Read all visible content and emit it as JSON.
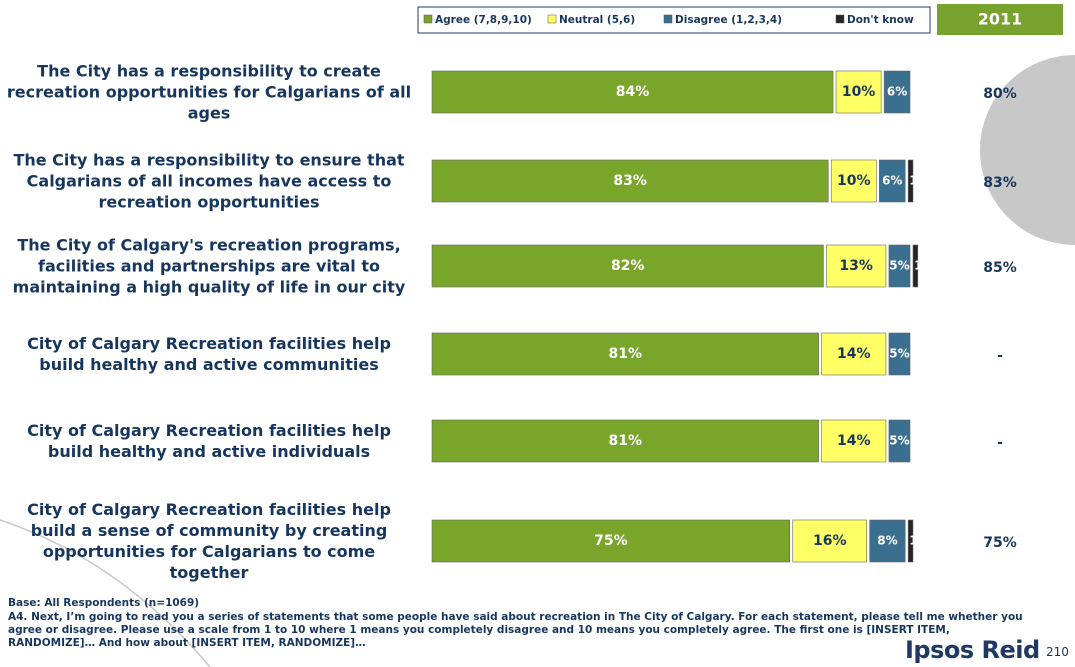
{
  "chart_data": {
    "type": "stacked-bar-horizontal",
    "categories": [
      "The City has a responsibility to create recreation opportunities for Calgarians of all ages",
      "The City has a responsibility to ensure that Calgarians of all incomes have access to recreation opportunities",
      "The City of Calgary's recreation programs, facilities and partnerships are vital to maintaining a high quality of life in our city",
      "City of Calgary Recreation facilities help build healthy and active communities",
      "City of Calgary Recreation facilities help build healthy and active individuals",
      "City of Calgary Recreation facilities help build a sense of community by creating opportunities for Calgarians to come together"
    ],
    "xlim": [
      0,
      100
    ],
    "series": [
      {
        "name": "Agree (7,8,9,10)",
        "color": "#7aa52b",
        "values": [
          84,
          83,
          82,
          81,
          81,
          75
        ],
        "value_labels": [
          "84%",
          "83%",
          "82%",
          "81%",
          "81%",
          "75%"
        ]
      },
      {
        "name": "Neutral (5,6)",
        "color": "#ffff66",
        "values": [
          10,
          10,
          13,
          14,
          14,
          16
        ],
        "value_labels": [
          "10%",
          "10%",
          "13%",
          "14%",
          "14%",
          "16%"
        ]
      },
      {
        "name": "Disagree (1,2,3,4)",
        "color": "#3b6f8f",
        "values": [
          6,
          6,
          5,
          5,
          5,
          8
        ],
        "value_labels": [
          "6%",
          "6%",
          "5%",
          "5%",
          "5%",
          "8%"
        ]
      },
      {
        "name": "Don't know",
        "color": "#262626",
        "values": [
          0,
          1,
          1,
          0,
          0,
          1
        ],
        "value_labels": [
          null,
          "1",
          "1",
          null,
          null,
          "1"
        ]
      }
    ],
    "comparison": {
      "title": "2011",
      "labels": [
        "80%",
        "83%",
        "85%",
        "-",
        "-",
        "75%"
      ]
    },
    "base": "Base: All Respondents (n=1069)",
    "question": "A4. Next, I’m going to read you a series of statements that some people have said about recreation in The City of Calgary. For each statement, please tell me whether you agree or disagree. Please use a scale from 1 to 10 where 1 means you completely disagree and 10 means you completely agree. The first one is [INSERT ITEM, RANDOMIZE]… And how about [INSERT ITEM, RANDOMIZE]…",
    "brand": "Ipsos Reid",
    "page": "210"
  }
}
